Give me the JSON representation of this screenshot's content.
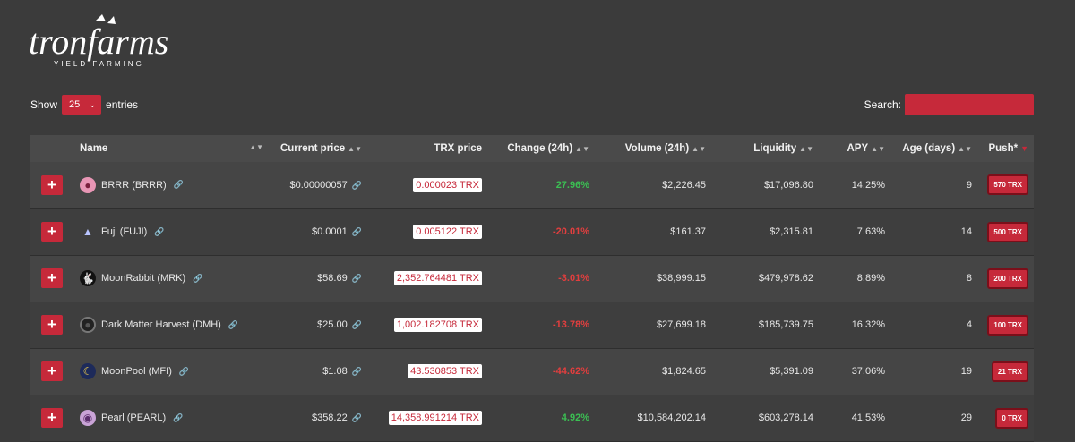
{
  "brand": {
    "logo_text": "tronfarms",
    "tagline": "YIELD FARMING"
  },
  "controls": {
    "show_label": "Show",
    "entries_value": "25",
    "entries_label": "entries",
    "search_label": "Search:",
    "search_value": ""
  },
  "table": {
    "headers": {
      "name": "Name",
      "current_price": "Current price",
      "trx_price": "TRX price",
      "change": "Change (24h)",
      "volume": "Volume (24h)",
      "liquidity": "Liquidity",
      "apy": "APY",
      "age": "Age (days)",
      "push": "Push*"
    },
    "rows": [
      {
        "name": "BRRR (BRRR)",
        "current_price": "$0.00000057",
        "trx_price": "0.000023 TRX",
        "change": "27.96%",
        "change_dir": "pos",
        "volume": "$2,226.45",
        "liquidity": "$17,096.80",
        "apy": "14.25%",
        "age": "9",
        "push": "570 TRX",
        "icon": "pink-character-icon"
      },
      {
        "name": "Fuji (FUJI)",
        "current_price": "$0.0001",
        "trx_price": "0.005122 TRX",
        "change": "-20.01%",
        "change_dir": "neg",
        "volume": "$161.37",
        "liquidity": "$2,315.81",
        "apy": "7.63%",
        "age": "14",
        "push": "500 TRX",
        "icon": "mountain-icon"
      },
      {
        "name": "MoonRabbit (MRK)",
        "current_price": "$58.69",
        "trx_price": "2,352.764481 TRX",
        "change": "-3.01%",
        "change_dir": "neg",
        "volume": "$38,999.15",
        "liquidity": "$479,978.62",
        "apy": "8.89%",
        "age": "8",
        "push": "200 TRX",
        "icon": "rabbit-icon"
      },
      {
        "name": "Dark Matter Harvest (DMH)",
        "current_price": "$25.00",
        "trx_price": "1,002.182708 TRX",
        "change": "-13.78%",
        "change_dir": "neg",
        "volume": "$27,699.18",
        "liquidity": "$185,739.75",
        "apy": "16.32%",
        "age": "4",
        "push": "100 TRX",
        "icon": "dark-orb-icon"
      },
      {
        "name": "MoonPool (MFI)",
        "current_price": "$1.08",
        "trx_price": "43.530853 TRX",
        "change": "-44.62%",
        "change_dir": "neg",
        "volume": "$1,824.65",
        "liquidity": "$5,391.09",
        "apy": "37.06%",
        "age": "19",
        "push": "21 TRX",
        "icon": "moon-icon"
      },
      {
        "name": "Pearl (PEARL)",
        "current_price": "$358.22",
        "trx_price": "14,358.991214 TRX",
        "change": "4.92%",
        "change_dir": "pos",
        "volume": "$10,584,202.14",
        "liquidity": "$603,278.14",
        "apy": "41.53%",
        "age": "29",
        "push": "0 TRX",
        "icon": "pearl-icon"
      }
    ]
  },
  "colors": {
    "accent": "#c6293a",
    "positive": "#3bbf53",
    "negative": "#e23e3e",
    "background": "#3b3b3b"
  }
}
